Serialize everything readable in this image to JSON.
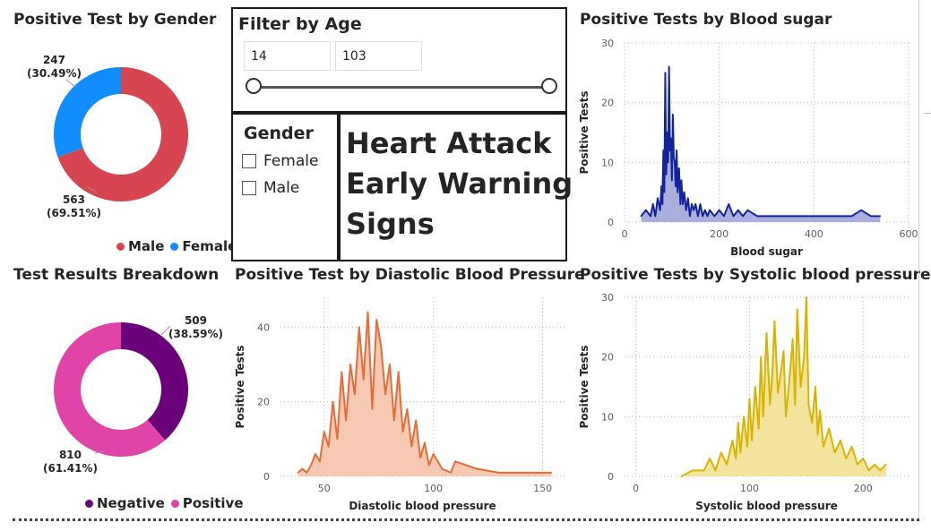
{
  "gender_donut": {
    "title": "Positive Test by Gender",
    "slices": [
      {
        "name": "Male",
        "value": 563,
        "percent": "69.51%",
        "color": "#d64550"
      },
      {
        "name": "Female",
        "value": 247,
        "percent": "30.49%",
        "color": "#118dff"
      }
    ],
    "labels": {
      "female_value": "247",
      "female_pct": "(30.49%)",
      "male_value": "563",
      "male_pct": "(69.51%)"
    },
    "legend": {
      "male": "Male",
      "female": "Female"
    }
  },
  "age_filter": {
    "title": "Filter by Age",
    "min": "14",
    "max": "103",
    "slider_low_fraction": 0.0,
    "slider_high_fraction": 1.0
  },
  "gender_filter": {
    "title": "Gender",
    "options": [
      "Female",
      "Male"
    ]
  },
  "headline": {
    "line1": "Heart Attack",
    "line2": "Early Warning",
    "line3": "Signs"
  },
  "results_donut": {
    "title": "Test Results Breakdown",
    "slices": [
      {
        "name": "Negative",
        "value": 509,
        "percent": "38.59%",
        "color": "#6b007b"
      },
      {
        "name": "Positive",
        "value": 810,
        "percent": "61.41%",
        "color": "#e044a7"
      }
    ],
    "labels": {
      "neg_value": "509",
      "neg_pct": "(38.59%)",
      "pos_value": "810",
      "pos_pct": "(61.41%)"
    },
    "legend": {
      "negative": "Negative",
      "positive": "Positive"
    }
  },
  "chart_data": [
    {
      "type": "area",
      "title": "Positive Tests by Blood sugar",
      "xlabel": "Blood sugar",
      "ylabel": "Positive Tests",
      "xlim": [
        0,
        600
      ],
      "ylim": [
        0,
        30
      ],
      "xticks": [
        0,
        200,
        400,
        600
      ],
      "yticks": [
        0,
        10,
        20,
        30
      ],
      "grid": true,
      "color": "#12239e",
      "fill": "#9aa0d6",
      "x": [
        35,
        45,
        55,
        60,
        65,
        70,
        75,
        78,
        80,
        82,
        84,
        86,
        88,
        90,
        92,
        94,
        96,
        98,
        100,
        102,
        104,
        106,
        108,
        110,
        112,
        115,
        118,
        120,
        123,
        126,
        130,
        134,
        138,
        142,
        146,
        150,
        155,
        160,
        165,
        170,
        175,
        180,
        190,
        200,
        210,
        220,
        230,
        240,
        250,
        260,
        280,
        300,
        320,
        340,
        360,
        380,
        400,
        420,
        440,
        460,
        480,
        500,
        520,
        540
      ],
      "y": [
        1,
        2,
        1,
        3,
        1,
        4,
        2,
        6,
        3,
        12,
        5,
        25,
        8,
        15,
        10,
        26,
        12,
        14,
        7,
        18,
        11,
        10,
        6,
        12,
        5,
        9,
        3,
        7,
        3,
        5,
        2,
        4,
        1,
        3,
        2,
        3,
        1,
        3,
        1,
        2,
        1,
        2,
        1,
        2,
        1,
        3,
        1,
        2,
        1,
        2,
        1,
        1,
        1,
        1,
        1,
        1,
        1,
        1,
        1,
        1,
        1,
        2,
        1,
        1
      ]
    },
    {
      "type": "area",
      "title": "Positive Test by Diastolic Blood Pressure",
      "xlabel": "Diastolic blood pressure",
      "ylabel": "Positive Tests",
      "xlim": [
        30,
        160
      ],
      "ylim": [
        0,
        48
      ],
      "xticks": [
        50,
        100,
        150
      ],
      "yticks": [
        0,
        20,
        40
      ],
      "grid": true,
      "color": "#e66c37",
      "fill": "#f4bfa4",
      "x": [
        38,
        40,
        42,
        44,
        46,
        48,
        50,
        52,
        54,
        56,
        58,
        60,
        62,
        64,
        66,
        68,
        70,
        72,
        74,
        76,
        78,
        80,
        82,
        84,
        86,
        88,
        90,
        92,
        94,
        96,
        98,
        100,
        104,
        108,
        110,
        115,
        120,
        130,
        140,
        150,
        154
      ],
      "y": [
        1,
        2,
        1,
        3,
        6,
        4,
        12,
        8,
        20,
        10,
        28,
        15,
        30,
        22,
        40,
        26,
        44,
        18,
        42,
        35,
        22,
        30,
        15,
        28,
        12,
        18,
        8,
        15,
        5,
        9,
        3,
        6,
        2,
        1,
        4,
        3,
        2,
        1,
        1,
        1,
        1
      ]
    },
    {
      "type": "area",
      "title": "Positive Tests by Systolic blood pressure",
      "xlabel": "Systolic blood pressure",
      "ylabel": "Positive Tests",
      "xlim": [
        -10,
        240
      ],
      "ylim": [
        0,
        30
      ],
      "xticks": [
        0,
        100,
        200
      ],
      "yticks": [
        0,
        10,
        20,
        30
      ],
      "grid": true,
      "color": "#d9b300",
      "fill": "#f0df8c",
      "x": [
        40,
        50,
        60,
        65,
        70,
        75,
        80,
        85,
        88,
        90,
        92,
        95,
        98,
        100,
        102,
        105,
        108,
        110,
        112,
        115,
        118,
        120,
        122,
        125,
        128,
        130,
        132,
        135,
        138,
        140,
        142,
        145,
        148,
        150,
        152,
        155,
        158,
        160,
        162,
        165,
        170,
        175,
        180,
        185,
        190,
        195,
        200,
        205,
        210,
        215,
        220
      ],
      "y": [
        0,
        1,
        1,
        3,
        1,
        4,
        2,
        6,
        3,
        9,
        4,
        10,
        5,
        13,
        6,
        15,
        8,
        20,
        10,
        24,
        12,
        17,
        26,
        14,
        18,
        21,
        10,
        16,
        23,
        12,
        28,
        15,
        20,
        30,
        12,
        9,
        15,
        7,
        11,
        5,
        8,
        4,
        6,
        3,
        5,
        2,
        3,
        1,
        2,
        1,
        2
      ]
    }
  ]
}
